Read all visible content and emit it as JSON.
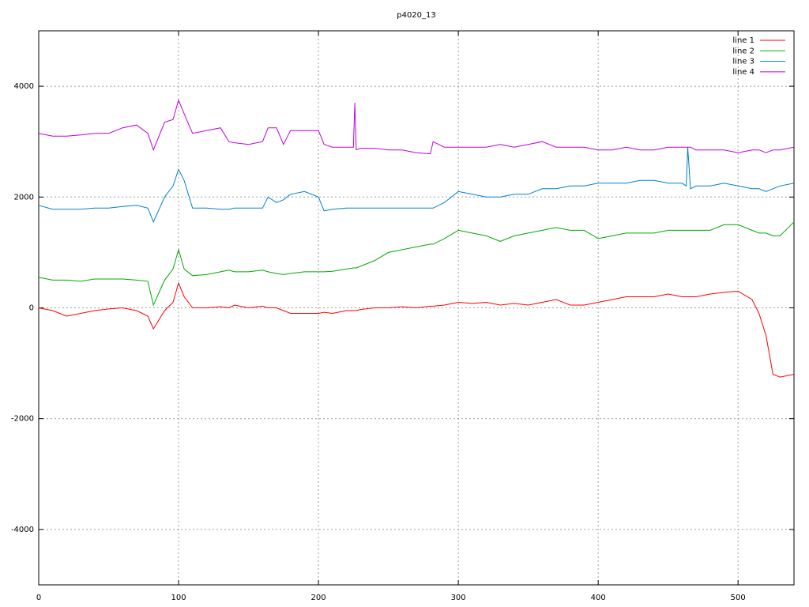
{
  "chart_data": {
    "type": "line",
    "title": "p4020_13",
    "x": [
      0,
      10,
      20,
      30,
      40,
      50,
      60,
      70,
      78,
      82,
      90,
      96,
      100,
      104,
      110,
      120,
      130,
      136,
      140,
      150,
      160,
      164,
      170,
      175,
      180,
      190,
      200,
      204,
      210,
      220,
      225,
      226,
      227,
      230,
      240,
      250,
      260,
      270,
      280,
      282,
      290,
      300,
      310,
      320,
      330,
      340,
      350,
      360,
      370,
      380,
      390,
      400,
      410,
      420,
      430,
      440,
      450,
      460,
      463,
      464,
      466,
      470,
      480,
      490,
      500,
      510,
      515,
      520,
      525,
      530,
      540
    ],
    "series": [
      {
        "name": "line 1",
        "color": "#ff0000",
        "values": [
          0,
          -50,
          -150,
          -100,
          -50,
          -20,
          0,
          -50,
          -150,
          -380,
          -50,
          100,
          450,
          200,
          0,
          0,
          20,
          0,
          50,
          0,
          30,
          0,
          0,
          -50,
          -100,
          -100,
          -100,
          -80,
          -100,
          -50,
          -50,
          -50,
          -50,
          -30,
          0,
          0,
          20,
          0,
          30,
          30,
          50,
          100,
          80,
          100,
          50,
          80,
          50,
          100,
          150,
          50,
          50,
          100,
          150,
          200,
          200,
          200,
          250,
          200,
          200,
          200,
          200,
          200,
          250,
          280,
          300,
          150,
          -100,
          -500,
          -1200,
          -1250,
          -1200
        ]
      },
      {
        "name": "line 2",
        "color": "#00aa00",
        "values": [
          550,
          500,
          500,
          480,
          520,
          520,
          520,
          500,
          480,
          50,
          500,
          700,
          1050,
          700,
          580,
          600,
          650,
          680,
          650,
          650,
          680,
          650,
          620,
          600,
          620,
          650,
          650,
          650,
          660,
          700,
          720,
          720,
          720,
          750,
          850,
          1000,
          1050,
          1100,
          1150,
          1150,
          1250,
          1400,
          1350,
          1300,
          1200,
          1300,
          1350,
          1400,
          1450,
          1400,
          1400,
          1250,
          1300,
          1350,
          1350,
          1350,
          1400,
          1400,
          1400,
          1400,
          1400,
          1400,
          1400,
          1500,
          1500,
          1400,
          1350,
          1350,
          1300,
          1300,
          1550
        ]
      },
      {
        "name": "line 3",
        "color": "#0080d0",
        "values": [
          1850,
          1780,
          1780,
          1780,
          1800,
          1800,
          1830,
          1850,
          1800,
          1550,
          2000,
          2200,
          2500,
          2300,
          1800,
          1800,
          1780,
          1780,
          1800,
          1800,
          1800,
          2000,
          1900,
          1950,
          2050,
          2100,
          2000,
          1750,
          1780,
          1800,
          1800,
          1800,
          1800,
          1800,
          1800,
          1800,
          1800,
          1800,
          1800,
          1800,
          1900,
          2100,
          2050,
          2000,
          2000,
          2050,
          2050,
          2150,
          2150,
          2200,
          2200,
          2250,
          2250,
          2250,
          2300,
          2300,
          2250,
          2250,
          2200,
          2900,
          2150,
          2200,
          2200,
          2250,
          2200,
          2150,
          2150,
          2100,
          2150,
          2200,
          2250
        ]
      },
      {
        "name": "line 4",
        "color": "#c000e0",
        "values": [
          3150,
          3100,
          3100,
          3120,
          3150,
          3150,
          3250,
          3300,
          3150,
          2850,
          3350,
          3400,
          3750,
          3500,
          3150,
          3200,
          3250,
          3000,
          2980,
          2950,
          3000,
          3250,
          3250,
          2950,
          3200,
          3200,
          3200,
          2950,
          2900,
          2900,
          2900,
          3700,
          2850,
          2880,
          2880,
          2850,
          2850,
          2800,
          2780,
          3000,
          2900,
          2900,
          2900,
          2900,
          2950,
          2900,
          2950,
          3000,
          2900,
          2900,
          2900,
          2850,
          2850,
          2900,
          2850,
          2850,
          2900,
          2900,
          2900,
          2900,
          2900,
          2850,
          2850,
          2850,
          2800,
          2850,
          2850,
          2800,
          2850,
          2850,
          2900
        ]
      }
    ],
    "xlim": [
      0,
      540
    ],
    "xticks": [
      0,
      100,
      200,
      300,
      400,
      500
    ],
    "ylim": [
      -5000,
      5000
    ],
    "yticks": [
      -4000,
      -2000,
      0,
      2000,
      4000
    ],
    "grid": true,
    "legend": "top-right"
  }
}
